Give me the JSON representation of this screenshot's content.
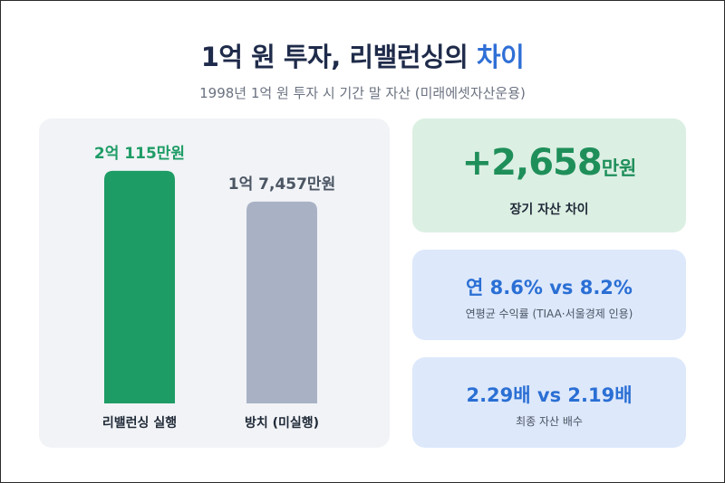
{
  "header": {
    "title_main": "1억 원 투자, 리밸런싱의 ",
    "title_accent": "차이",
    "subtitle": "1998년 1억 원 투자 시 기간 말 자산 (미래에셋자산운용)"
  },
  "chart_data": {
    "type": "bar",
    "categories": [
      "리밸런싱 실행",
      "방치 (미실행)"
    ],
    "values": [
      20115,
      17457
    ],
    "unit": "만원",
    "data_labels": [
      "2억 115만원",
      "1억 7,457만원"
    ],
    "colors": [
      "#1e9c66",
      "#a9b2c5"
    ],
    "label_colors": [
      "#1e9c66",
      "#4b5563"
    ],
    "ylim": [
      0,
      20500
    ],
    "grid": false,
    "legend": "none"
  },
  "cards": {
    "difference": {
      "value": "+2,658",
      "unit": "만원",
      "caption": "장기 자산 차이"
    },
    "annual_return": {
      "value": "연 8.6% vs 8.2%",
      "note": "연평균 수익률 (TIAA·서울경제 인용)"
    },
    "multiple": {
      "value": "2.29배 vs 2.19배",
      "note": "최종 자산 배수"
    }
  }
}
